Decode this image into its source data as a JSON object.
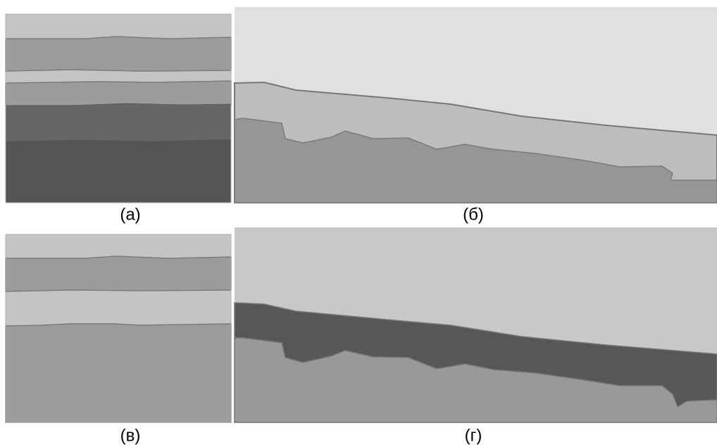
{
  "panels": [
    {
      "label": "(а)"
    },
    {
      "label": "(б)"
    },
    {
      "label": "(в)"
    },
    {
      "label": "(г)"
    }
  ]
}
